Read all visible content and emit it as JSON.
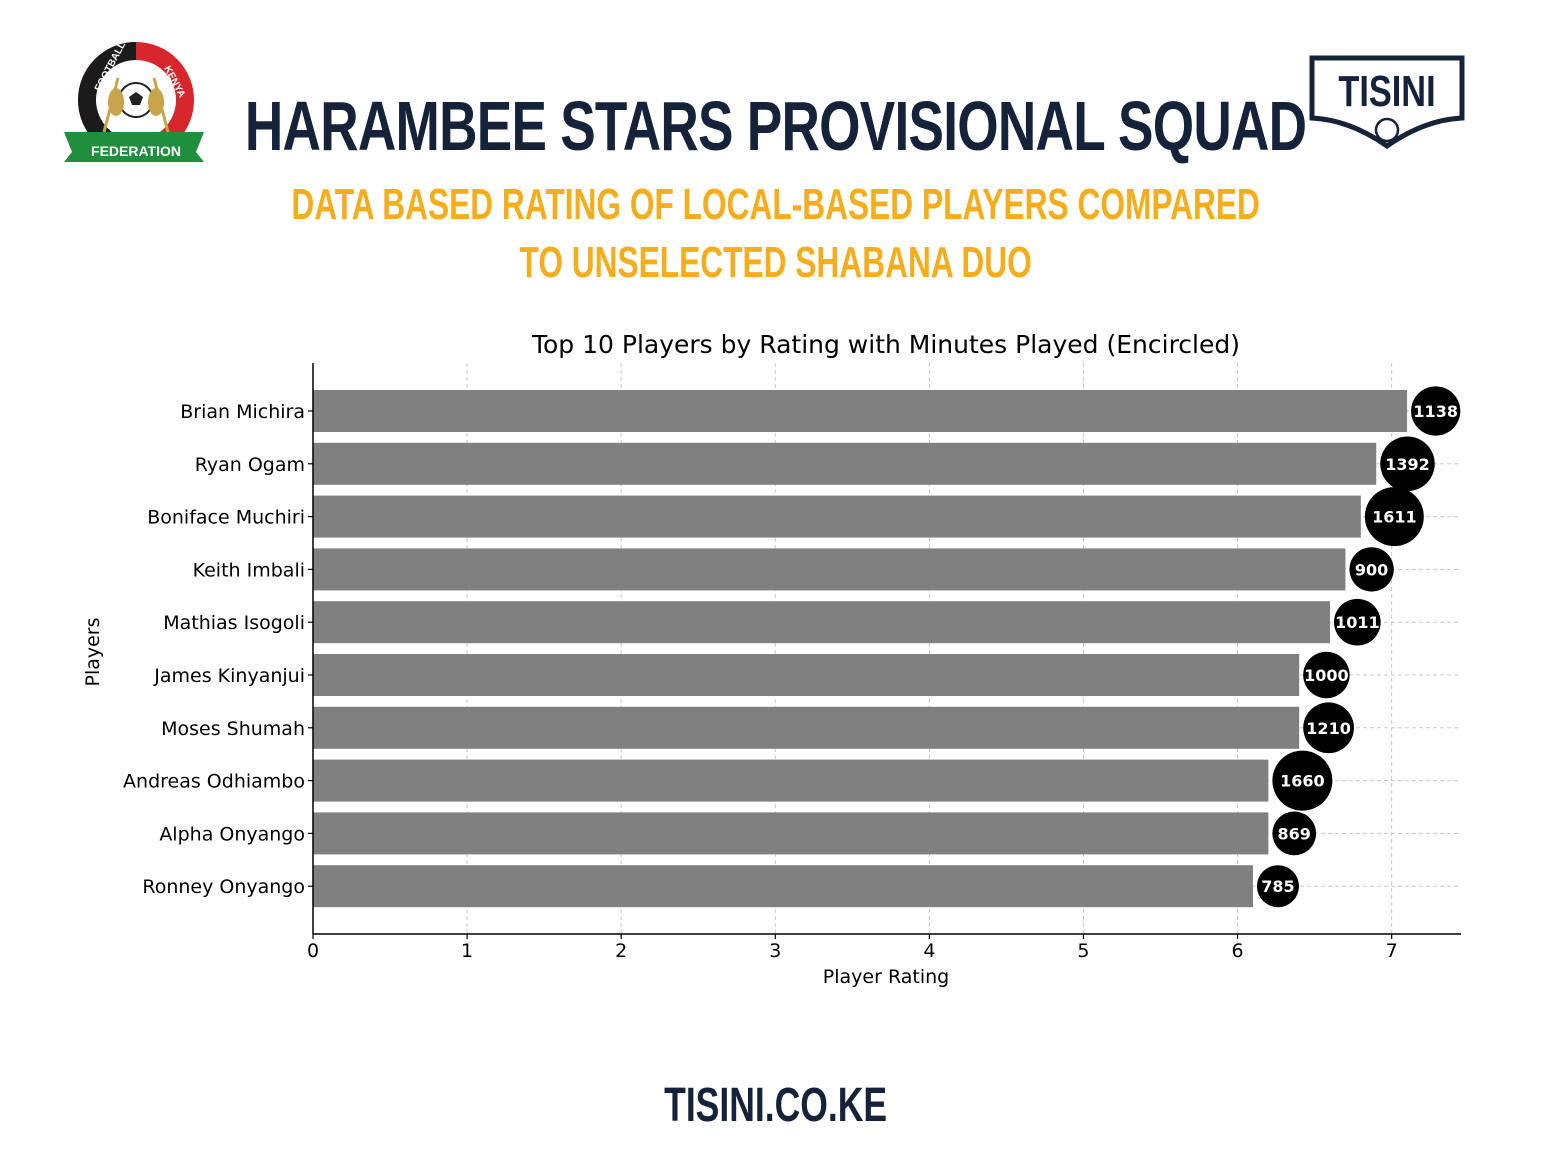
{
  "header": {
    "title": "HARAMBEE STARS PROVISIONAL SQUAD",
    "subtitle_line1": "DATA BASED RATING OF LOCAL-BASED PLAYERS COMPARED",
    "subtitle_line2": "TO UNSELECTED SHABANA DUO",
    "brand_logo_text": "TISINI",
    "federation_logo_text": [
      "FOOTBALL",
      "KENYA",
      "FEDERATION"
    ]
  },
  "footer": {
    "site": "TISINI.CO.KE"
  },
  "colors": {
    "navy": "#14233a",
    "gold": "#f6ad1b",
    "bar": "#808080",
    "bubble": "#000000",
    "fkf_green": "#1f8f3e",
    "fkf_red": "#d7262c"
  },
  "chart_data": {
    "type": "bar",
    "orientation": "horizontal",
    "title": "Top 10 Players by Rating with Minutes Played (Encircled)",
    "xlabel": "Player Rating",
    "ylabel": "Players",
    "xlim": [
      0,
      7.45
    ],
    "xticks": [
      0,
      1,
      2,
      3,
      4,
      5,
      6,
      7
    ],
    "grid": true,
    "categories": [
      "Brian Michira",
      "Ryan Ogam",
      "Boniface Muchiri",
      "Keith Imbali",
      "Mathias Isogoli",
      "James Kinyanjui",
      "Moses Shumah",
      "Andreas Odhiambo",
      "Alpha Onyango",
      "Ronney Onyango"
    ],
    "values": [
      7.1,
      6.9,
      6.8,
      6.7,
      6.6,
      6.4,
      6.4,
      6.2,
      6.2,
      6.1
    ],
    "minutes_played": [
      1138,
      1392,
      1611,
      900,
      1011,
      1000,
      1210,
      1660,
      869,
      785
    ]
  }
}
